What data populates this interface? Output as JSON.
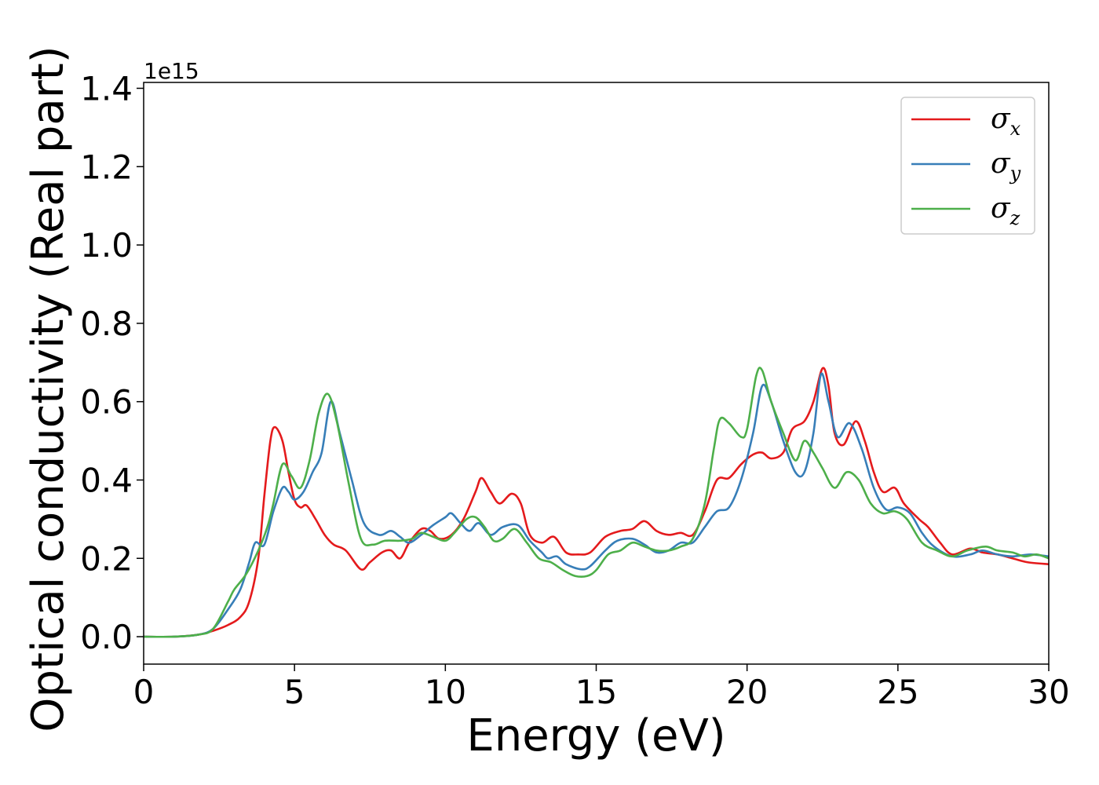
{
  "chart_data": {
    "type": "line",
    "title": "",
    "xlabel": "Energy (eV)",
    "ylabel": "Optical conductivity (Real part)",
    "y_offset_text": "1e15",
    "xlim": [
      0,
      30
    ],
    "ylim": [
      -0.07,
      1.415
    ],
    "x_ticks": [
      0,
      5,
      10,
      15,
      20,
      25,
      30
    ],
    "x_tick_labels": [
      "0",
      "5",
      "10",
      "15",
      "20",
      "25",
      "30"
    ],
    "y_ticks": [
      0.0,
      0.2,
      0.4,
      0.6,
      0.8,
      1.0,
      1.2,
      1.4
    ],
    "y_tick_labels": [
      "0.0",
      "0.2",
      "0.4",
      "0.6",
      "0.8",
      "1.0",
      "1.2",
      "1.4"
    ],
    "grid": false,
    "legend_position": "top-right",
    "series": [
      {
        "name": "σx",
        "symbol": "σ",
        "subscript": "x",
        "color": "#e41a1c",
        "points": [
          [
            0,
            0
          ],
          [
            1,
            0
          ],
          [
            1.8,
            0.005
          ],
          [
            2.3,
            0.015
          ],
          [
            2.8,
            0.03
          ],
          [
            3.2,
            0.05
          ],
          [
            3.5,
            0.09
          ],
          [
            3.8,
            0.2
          ],
          [
            4.0,
            0.36
          ],
          [
            4.2,
            0.5
          ],
          [
            4.35,
            0.535
          ],
          [
            4.6,
            0.5
          ],
          [
            4.8,
            0.42
          ],
          [
            5.0,
            0.35
          ],
          [
            5.2,
            0.33
          ],
          [
            5.4,
            0.335
          ],
          [
            5.7,
            0.3
          ],
          [
            6.0,
            0.26
          ],
          [
            6.3,
            0.235
          ],
          [
            6.7,
            0.22
          ],
          [
            7.2,
            0.172
          ],
          [
            7.5,
            0.19
          ],
          [
            7.9,
            0.215
          ],
          [
            8.2,
            0.22
          ],
          [
            8.5,
            0.2
          ],
          [
            8.8,
            0.24
          ],
          [
            9.2,
            0.275
          ],
          [
            9.5,
            0.27
          ],
          [
            9.8,
            0.25
          ],
          [
            10.2,
            0.26
          ],
          [
            10.6,
            0.3
          ],
          [
            11.0,
            0.37
          ],
          [
            11.2,
            0.405
          ],
          [
            11.5,
            0.37
          ],
          [
            11.8,
            0.34
          ],
          [
            12.2,
            0.365
          ],
          [
            12.5,
            0.34
          ],
          [
            12.8,
            0.26
          ],
          [
            13.2,
            0.24
          ],
          [
            13.6,
            0.255
          ],
          [
            14.0,
            0.215
          ],
          [
            14.4,
            0.21
          ],
          [
            14.8,
            0.215
          ],
          [
            15.3,
            0.255
          ],
          [
            15.8,
            0.27
          ],
          [
            16.2,
            0.275
          ],
          [
            16.6,
            0.295
          ],
          [
            17.0,
            0.27
          ],
          [
            17.4,
            0.26
          ],
          [
            17.8,
            0.265
          ],
          [
            18.2,
            0.26
          ],
          [
            18.6,
            0.32
          ],
          [
            19.0,
            0.4
          ],
          [
            19.4,
            0.405
          ],
          [
            19.8,
            0.44
          ],
          [
            20.2,
            0.465
          ],
          [
            20.5,
            0.47
          ],
          [
            20.8,
            0.455
          ],
          [
            21.2,
            0.47
          ],
          [
            21.5,
            0.53
          ],
          [
            21.9,
            0.55
          ],
          [
            22.2,
            0.6
          ],
          [
            22.5,
            0.685
          ],
          [
            22.7,
            0.64
          ],
          [
            22.9,
            0.52
          ],
          [
            23.2,
            0.49
          ],
          [
            23.6,
            0.55
          ],
          [
            23.9,
            0.5
          ],
          [
            24.2,
            0.42
          ],
          [
            24.5,
            0.37
          ],
          [
            24.9,
            0.38
          ],
          [
            25.2,
            0.34
          ],
          [
            25.7,
            0.3
          ],
          [
            26.0,
            0.28
          ],
          [
            26.4,
            0.24
          ],
          [
            26.8,
            0.21
          ],
          [
            27.4,
            0.225
          ],
          [
            27.8,
            0.215
          ],
          [
            28.3,
            0.21
          ],
          [
            28.8,
            0.2
          ],
          [
            29.3,
            0.19
          ],
          [
            30,
            0.185
          ]
        ]
      },
      {
        "name": "σy",
        "symbol": "σ",
        "subscript": "y",
        "color": "#377eb8",
        "points": [
          [
            0,
            0
          ],
          [
            1,
            0
          ],
          [
            1.8,
            0.005
          ],
          [
            2.3,
            0.02
          ],
          [
            2.8,
            0.07
          ],
          [
            3.2,
            0.12
          ],
          [
            3.5,
            0.19
          ],
          [
            3.7,
            0.24
          ],
          [
            4.0,
            0.235
          ],
          [
            4.3,
            0.32
          ],
          [
            4.6,
            0.38
          ],
          [
            4.8,
            0.37
          ],
          [
            5.0,
            0.35
          ],
          [
            5.3,
            0.37
          ],
          [
            5.6,
            0.42
          ],
          [
            5.9,
            0.47
          ],
          [
            6.2,
            0.6
          ],
          [
            6.5,
            0.52
          ],
          [
            6.9,
            0.4
          ],
          [
            7.3,
            0.29
          ],
          [
            7.8,
            0.26
          ],
          [
            8.2,
            0.27
          ],
          [
            8.5,
            0.255
          ],
          [
            8.8,
            0.24
          ],
          [
            9.2,
            0.26
          ],
          [
            9.6,
            0.285
          ],
          [
            10.0,
            0.305
          ],
          [
            10.2,
            0.315
          ],
          [
            10.5,
            0.29
          ],
          [
            10.8,
            0.27
          ],
          [
            11.1,
            0.29
          ],
          [
            11.5,
            0.26
          ],
          [
            11.9,
            0.28
          ],
          [
            12.4,
            0.285
          ],
          [
            12.8,
            0.245
          ],
          [
            13.2,
            0.215
          ],
          [
            13.4,
            0.2
          ],
          [
            13.7,
            0.205
          ],
          [
            14.0,
            0.185
          ],
          [
            14.5,
            0.172
          ],
          [
            14.8,
            0.18
          ],
          [
            15.3,
            0.22
          ],
          [
            15.7,
            0.245
          ],
          [
            16.2,
            0.25
          ],
          [
            16.6,
            0.235
          ],
          [
            17.0,
            0.215
          ],
          [
            17.4,
            0.22
          ],
          [
            17.8,
            0.24
          ],
          [
            18.2,
            0.24
          ],
          [
            18.6,
            0.28
          ],
          [
            19.0,
            0.32
          ],
          [
            19.4,
            0.33
          ],
          [
            19.8,
            0.4
          ],
          [
            20.2,
            0.52
          ],
          [
            20.5,
            0.64
          ],
          [
            20.8,
            0.6
          ],
          [
            21.2,
            0.5
          ],
          [
            21.6,
            0.42
          ],
          [
            21.9,
            0.42
          ],
          [
            22.2,
            0.52
          ],
          [
            22.45,
            0.67
          ],
          [
            22.7,
            0.6
          ],
          [
            23.0,
            0.51
          ],
          [
            23.4,
            0.545
          ],
          [
            23.8,
            0.48
          ],
          [
            24.2,
            0.38
          ],
          [
            24.6,
            0.325
          ],
          [
            25.0,
            0.33
          ],
          [
            25.4,
            0.315
          ],
          [
            25.8,
            0.265
          ],
          [
            26.2,
            0.23
          ],
          [
            26.8,
            0.205
          ],
          [
            27.4,
            0.21
          ],
          [
            27.8,
            0.22
          ],
          [
            28.3,
            0.21
          ],
          [
            28.8,
            0.205
          ],
          [
            29.4,
            0.21
          ],
          [
            30,
            0.205
          ]
        ]
      },
      {
        "name": "σz",
        "symbol": "σ",
        "subscript": "z",
        "color": "#4daf4a",
        "points": [
          [
            0,
            0
          ],
          [
            1,
            0
          ],
          [
            1.8,
            0.005
          ],
          [
            2.3,
            0.02
          ],
          [
            2.8,
            0.09
          ],
          [
            3.0,
            0.12
          ],
          [
            3.4,
            0.16
          ],
          [
            3.8,
            0.22
          ],
          [
            4.1,
            0.28
          ],
          [
            4.3,
            0.34
          ],
          [
            4.6,
            0.44
          ],
          [
            4.9,
            0.41
          ],
          [
            5.2,
            0.38
          ],
          [
            5.5,
            0.45
          ],
          [
            5.8,
            0.57
          ],
          [
            6.1,
            0.62
          ],
          [
            6.4,
            0.55
          ],
          [
            6.8,
            0.39
          ],
          [
            7.2,
            0.25
          ],
          [
            7.6,
            0.235
          ],
          [
            8.0,
            0.245
          ],
          [
            8.5,
            0.245
          ],
          [
            8.9,
            0.25
          ],
          [
            9.2,
            0.265
          ],
          [
            9.6,
            0.255
          ],
          [
            10.0,
            0.245
          ],
          [
            10.3,
            0.265
          ],
          [
            10.7,
            0.3
          ],
          [
            11.0,
            0.305
          ],
          [
            11.3,
            0.28
          ],
          [
            11.6,
            0.245
          ],
          [
            11.9,
            0.25
          ],
          [
            12.3,
            0.275
          ],
          [
            12.7,
            0.24
          ],
          [
            13.1,
            0.2
          ],
          [
            13.5,
            0.19
          ],
          [
            13.9,
            0.17
          ],
          [
            14.3,
            0.155
          ],
          [
            14.7,
            0.155
          ],
          [
            15.0,
            0.17
          ],
          [
            15.4,
            0.21
          ],
          [
            15.8,
            0.22
          ],
          [
            16.2,
            0.24
          ],
          [
            16.6,
            0.23
          ],
          [
            17.0,
            0.22
          ],
          [
            17.4,
            0.22
          ],
          [
            17.8,
            0.23
          ],
          [
            18.2,
            0.25
          ],
          [
            18.6,
            0.34
          ],
          [
            18.9,
            0.48
          ],
          [
            19.1,
            0.555
          ],
          [
            19.4,
            0.545
          ],
          [
            19.8,
            0.51
          ],
          [
            20.0,
            0.53
          ],
          [
            20.3,
            0.665
          ],
          [
            20.5,
            0.68
          ],
          [
            20.8,
            0.6
          ],
          [
            21.2,
            0.52
          ],
          [
            21.6,
            0.45
          ],
          [
            21.9,
            0.5
          ],
          [
            22.2,
            0.47
          ],
          [
            22.5,
            0.43
          ],
          [
            22.9,
            0.38
          ],
          [
            23.3,
            0.42
          ],
          [
            23.7,
            0.4
          ],
          [
            24.1,
            0.34
          ],
          [
            24.5,
            0.315
          ],
          [
            24.9,
            0.32
          ],
          [
            25.3,
            0.3
          ],
          [
            25.8,
            0.24
          ],
          [
            26.3,
            0.22
          ],
          [
            26.8,
            0.205
          ],
          [
            27.3,
            0.22
          ],
          [
            27.9,
            0.23
          ],
          [
            28.3,
            0.22
          ],
          [
            28.8,
            0.215
          ],
          [
            29.2,
            0.205
          ],
          [
            29.6,
            0.21
          ],
          [
            30,
            0.2
          ]
        ]
      }
    ]
  }
}
